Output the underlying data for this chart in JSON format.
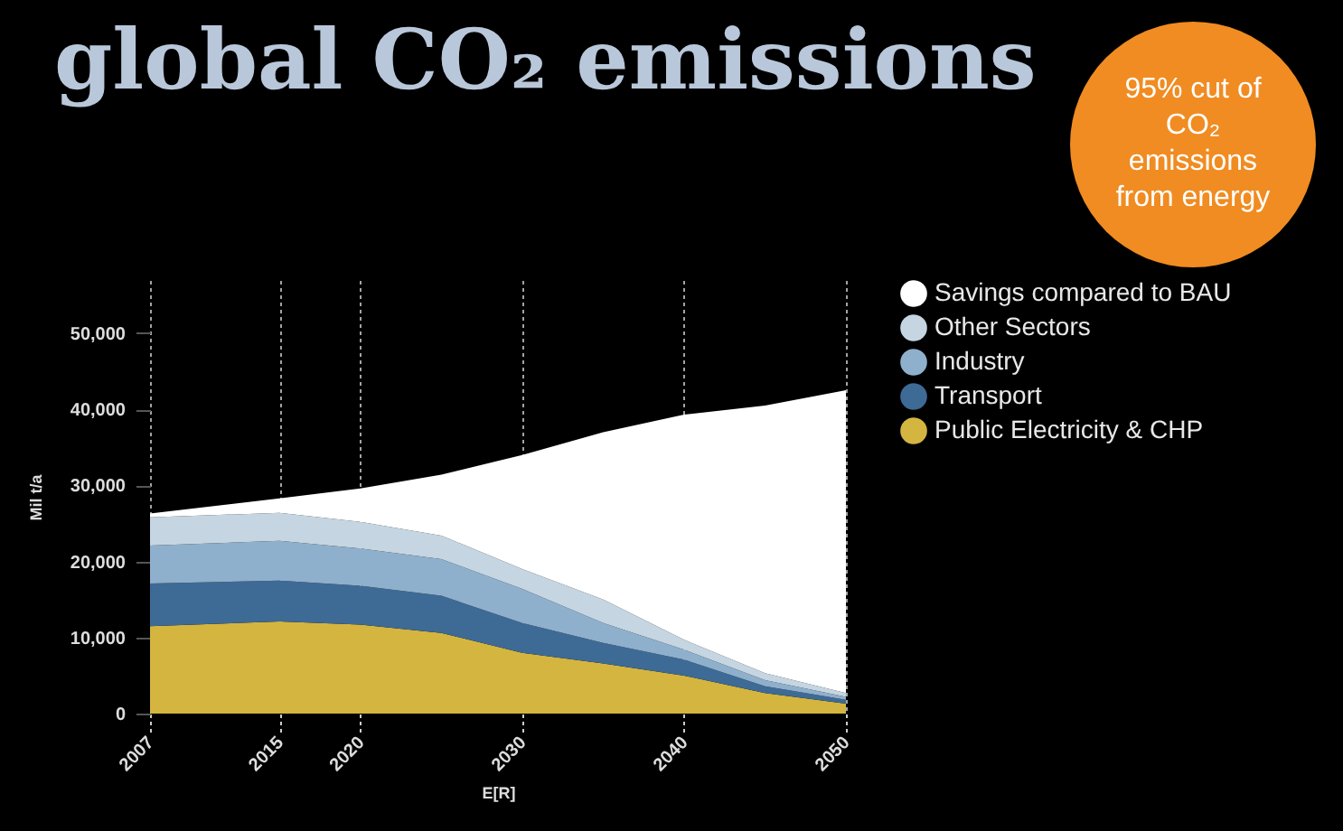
{
  "chart_data": {
    "type": "area",
    "title": "global CO₂ emissions",
    "xlabel": "E[R]",
    "ylabel": "Mil t/a",
    "annotations": [
      "95% cut of CO₂ emissions from energy"
    ],
    "x": [
      2007,
      2015,
      2020,
      2025,
      2030,
      2035,
      2040,
      2045,
      2050
    ],
    "stacked": true,
    "series": [
      {
        "name": "Public Electricity & CHP",
        "color": "#d4b540",
        "values": [
          11500,
          12100,
          11700,
          10600,
          8000,
          6600,
          5000,
          2700,
          1300
        ]
      },
      {
        "name": "Transport",
        "color": "#3e6a96",
        "values": [
          5600,
          5400,
          5100,
          4900,
          3900,
          2700,
          2100,
          900,
          500
        ]
      },
      {
        "name": "Industry",
        "color": "#8fb0cc",
        "values": [
          5000,
          5200,
          4900,
          4800,
          4500,
          2600,
          1300,
          800,
          400
        ]
      },
      {
        "name": "Other Sectors",
        "color": "#c5d5e2",
        "values": [
          3700,
          3700,
          3500,
          3100,
          2600,
          3100,
          1300,
          900,
          500
        ]
      },
      {
        "name": "Savings compared to BAU",
        "color": "#ffffff",
        "values": [
          500,
          1900,
          4400,
          8000,
          15000,
          22000,
          29600,
          35200,
          39800
        ]
      }
    ],
    "xlim": [
      2007,
      2050
    ],
    "xticks": [
      2007,
      2015,
      2020,
      2030,
      2040,
      2050
    ],
    "ylim": [
      0,
      57000
    ],
    "yticks": [
      {
        "value": 0,
        "label": "0"
      },
      {
        "value": 10000,
        "label": "10,000"
      },
      {
        "value": 20000,
        "label": "20,000"
      },
      {
        "value": 30000,
        "label": "30,000"
      },
      {
        "value": 40000,
        "label": "40,000"
      },
      {
        "value": 50000,
        "label": "50,000"
      }
    ],
    "grid": "x",
    "legend": "right"
  }
}
